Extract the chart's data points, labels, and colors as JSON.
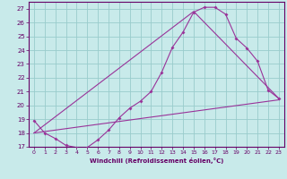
{
  "xlabel": "Windchill (Refroidissement éolien,°C)",
  "bg_color": "#c8eaea",
  "line_color": "#993399",
  "grid_color": "#99cccc",
  "ylim": [
    17,
    27.5
  ],
  "xlim": [
    -0.5,
    23.5
  ],
  "yticks": [
    17,
    18,
    19,
    20,
    21,
    22,
    23,
    24,
    25,
    26,
    27
  ],
  "xticks": [
    0,
    1,
    2,
    3,
    4,
    5,
    6,
    7,
    8,
    9,
    10,
    11,
    12,
    13,
    14,
    15,
    16,
    17,
    18,
    19,
    20,
    21,
    22,
    23
  ],
  "line1_x": [
    0,
    1,
    2,
    3,
    4,
    5,
    6,
    7,
    8,
    9,
    10,
    11,
    12,
    13,
    14,
    15,
    16,
    17,
    18,
    19,
    20,
    21,
    22,
    23
  ],
  "line1_y": [
    18.9,
    18.0,
    17.6,
    17.1,
    16.95,
    16.95,
    17.5,
    18.2,
    19.1,
    19.8,
    20.3,
    21.0,
    22.4,
    24.2,
    25.3,
    26.75,
    27.1,
    27.1,
    26.6,
    24.85,
    24.15,
    23.2,
    21.1,
    20.5
  ],
  "line2_x": [
    0,
    23
  ],
  "line2_y": [
    18.0,
    20.4
  ],
  "line3_x": [
    0,
    15,
    23
  ],
  "line3_y": [
    18.0,
    26.8,
    20.5
  ],
  "spine_color": "#660066",
  "tick_color": "#660066",
  "label_color": "#660066"
}
